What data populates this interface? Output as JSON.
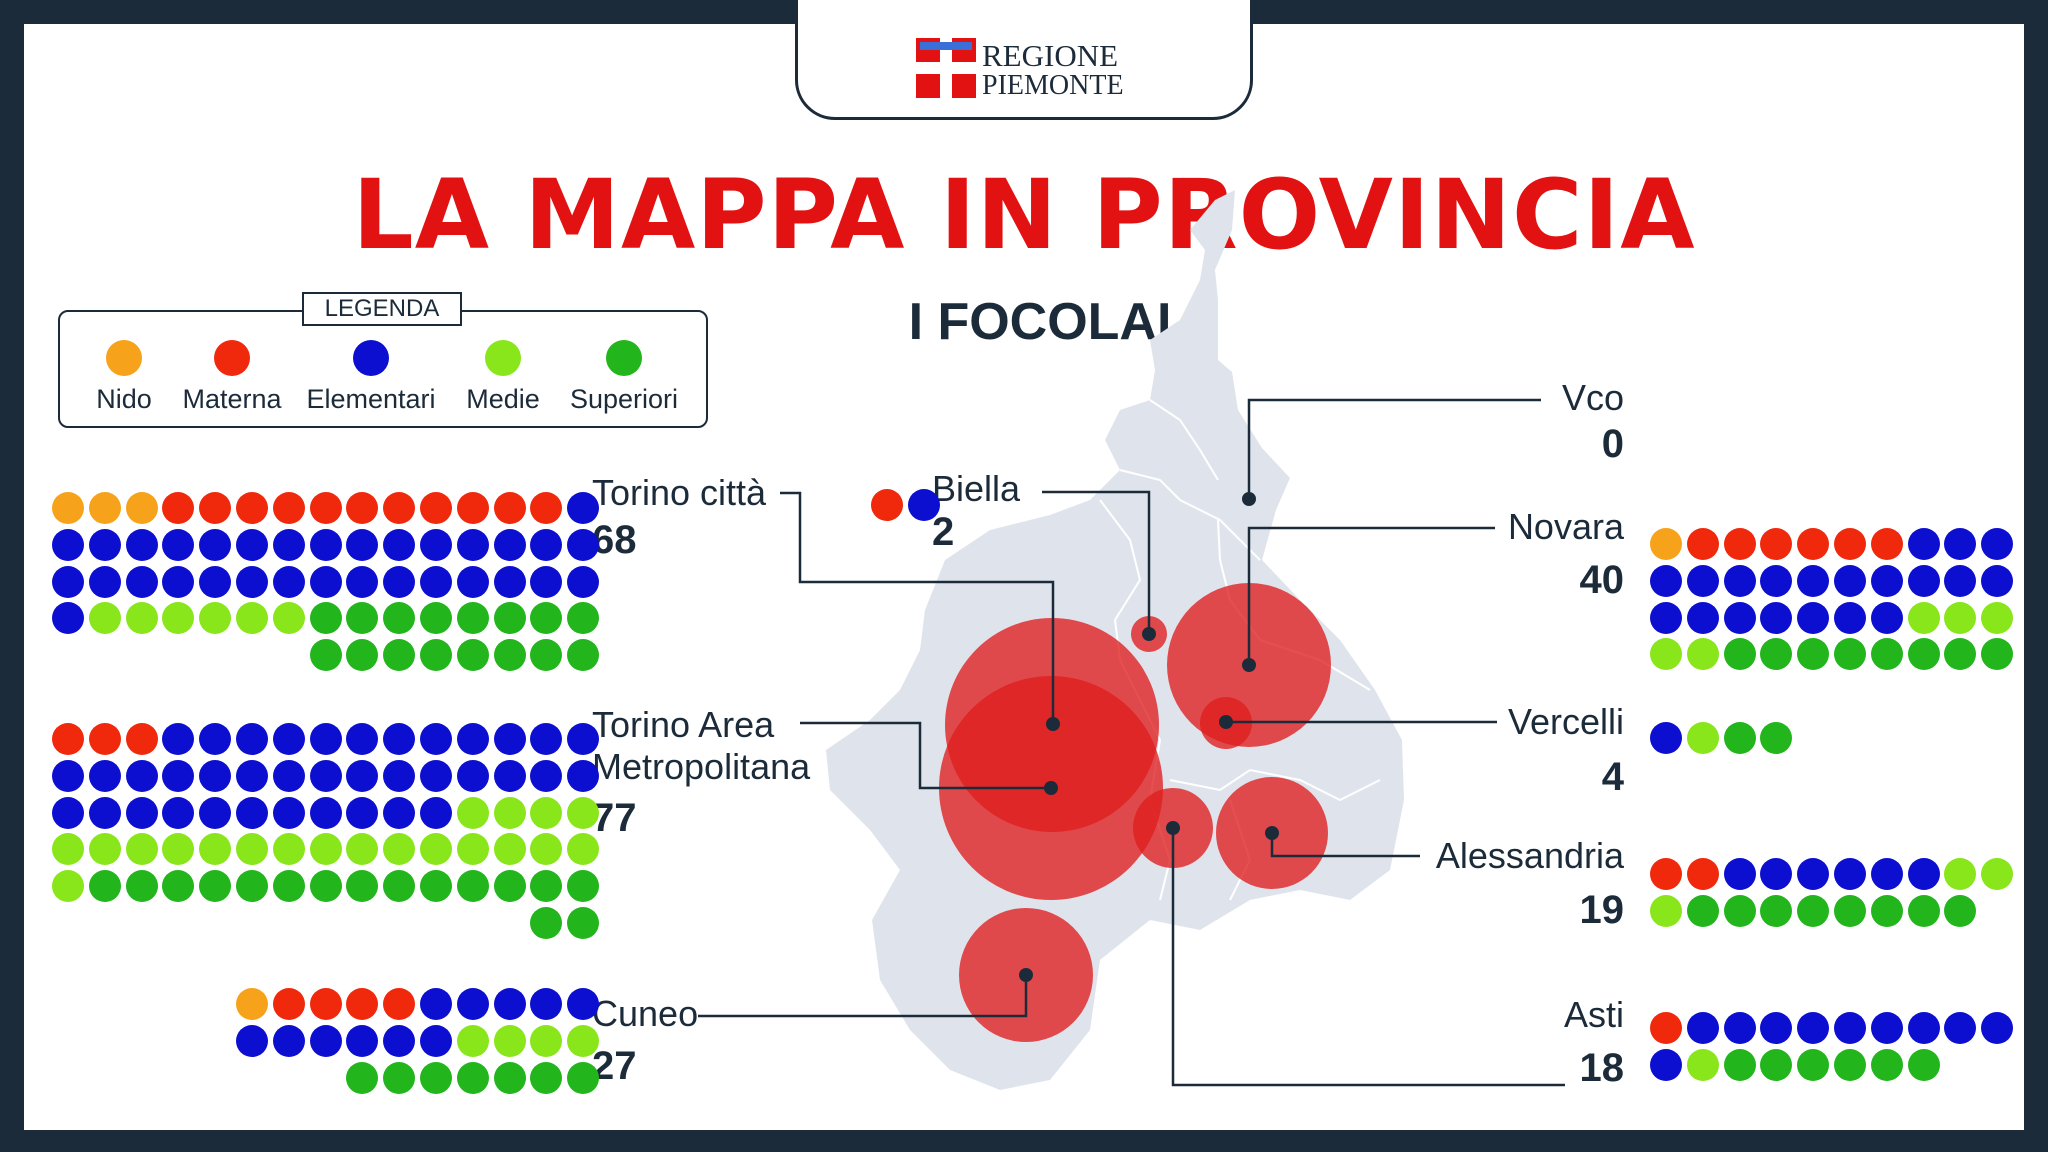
{
  "header": {
    "logo_line1": "REGIONE",
    "logo_line2": "PIEMONTE",
    "title": "LA MAPPA IN PROVINCIA",
    "subtitle": "I FOCOLAI"
  },
  "legend": {
    "title": "LEGENDA",
    "items": [
      {
        "key": "nido",
        "label": "Nido",
        "color": "#f7a21b"
      },
      {
        "key": "materna",
        "label": "Materna",
        "color": "#f0290d"
      },
      {
        "key": "elementari",
        "label": "Elementari",
        "color": "#0c0fd0"
      },
      {
        "key": "medie",
        "label": "Medie",
        "color": "#88e61a"
      },
      {
        "key": "superiori",
        "label": "Superiori",
        "color": "#22b51c"
      }
    ]
  },
  "provinces": [
    {
      "key": "torino_citta",
      "name": "Torino città",
      "count": "68",
      "counts": {
        "nido": 3,
        "materna": 11,
        "elementari": 32,
        "medie": 6,
        "superiori": 16
      }
    },
    {
      "key": "torino_area",
      "name": "Torino Area\nMetropolitana",
      "count": "77",
      "counts": {
        "nido": 0,
        "materna": 3,
        "elementari": 38,
        "medie": 20,
        "superiori": 16
      }
    },
    {
      "key": "cuneo",
      "name": "Cuneo",
      "count": "27",
      "counts": {
        "nido": 1,
        "materna": 4,
        "elementari": 11,
        "medie": 4,
        "superiori": 7
      }
    },
    {
      "key": "biella",
      "name": "Biella",
      "count": "2",
      "counts": {
        "nido": 0,
        "materna": 1,
        "elementari": 1,
        "medie": 0,
        "superiori": 0
      }
    },
    {
      "key": "vco",
      "name": "Vco",
      "count": "0",
      "counts": {
        "nido": 0,
        "materna": 0,
        "elementari": 0,
        "medie": 0,
        "superiori": 0
      }
    },
    {
      "key": "novara",
      "name": "Novara",
      "count": "40",
      "counts": {
        "nido": 1,
        "materna": 6,
        "elementari": 20,
        "medie": 5,
        "superiori": 8
      }
    },
    {
      "key": "vercelli",
      "name": "Vercelli",
      "count": "4",
      "counts": {
        "nido": 0,
        "materna": 0,
        "elementari": 1,
        "medie": 1,
        "superiori": 2
      }
    },
    {
      "key": "alessandria",
      "name": "Alessandria",
      "count": "19",
      "counts": {
        "nido": 0,
        "materna": 2,
        "elementari": 6,
        "medie": 3,
        "superiori": 8
      }
    },
    {
      "key": "asti",
      "name": "Asti",
      "count": "18",
      "counts": {
        "nido": 0,
        "materna": 1,
        "elementari": 10,
        "medie": 1,
        "superiori": 6
      }
    }
  ],
  "colors": {
    "bubble": "#e01e1e",
    "map_fill": "#dfe4ec",
    "title_red": "#e31212",
    "navy": "#1c2b3a"
  }
}
